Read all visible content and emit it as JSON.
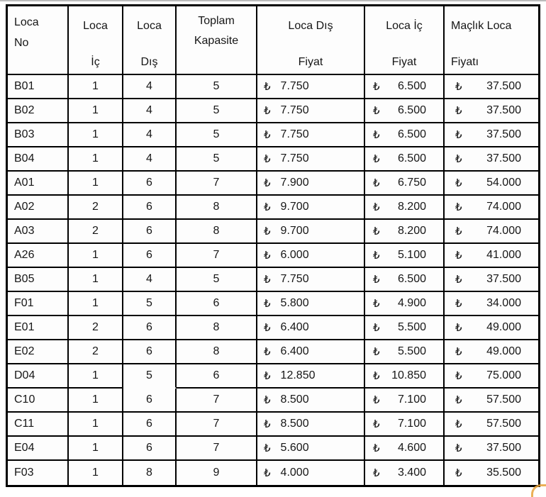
{
  "table": {
    "currency": "₺",
    "columns": [
      {
        "id": "loca-no",
        "lines": [
          "Loca",
          "No"
        ]
      },
      {
        "id": "loca-ic",
        "lines": [
          "Loca",
          "İç"
        ]
      },
      {
        "id": "loca-dis",
        "lines": [
          "Loca",
          "Dış"
        ]
      },
      {
        "id": "toplam-kapasite",
        "lines": [
          "Toplam",
          "Kapasite"
        ]
      },
      {
        "id": "loca-dis-fiyat",
        "lines": [
          "Loca Dış",
          "Fiyat"
        ]
      },
      {
        "id": "loca-ic-fiyat",
        "lines": [
          "Loca İç",
          "Fiyat"
        ]
      },
      {
        "id": "maclik-loca-fiyati",
        "lines": [
          "Maçlık Loca",
          "Fiyatı"
        ]
      }
    ],
    "rows": [
      {
        "no": "B01",
        "ic": "1",
        "dis": "4",
        "kapasite": "5",
        "dis_fiyat": "7.750",
        "ic_fiyat": "6.500",
        "maclik_fiyat": "37.500"
      },
      {
        "no": "B02",
        "ic": "1",
        "dis": "4",
        "kapasite": "5",
        "dis_fiyat": "7.750",
        "ic_fiyat": "6.500",
        "maclik_fiyat": "37.500"
      },
      {
        "no": "B03",
        "ic": "1",
        "dis": "4",
        "kapasite": "5",
        "dis_fiyat": "7.750",
        "ic_fiyat": "6.500",
        "maclik_fiyat": "37.500"
      },
      {
        "no": "B04",
        "ic": "1",
        "dis": "4",
        "kapasite": "5",
        "dis_fiyat": "7.750",
        "ic_fiyat": "6.500",
        "maclik_fiyat": "37.500"
      },
      {
        "no": "A01",
        "ic": "1",
        "dis": "6",
        "kapasite": "7",
        "dis_fiyat": "7.900",
        "ic_fiyat": "6.750",
        "maclik_fiyat": "54.000"
      },
      {
        "no": "A02",
        "ic": "2",
        "dis": "6",
        "kapasite": "8",
        "dis_fiyat": "9.700",
        "ic_fiyat": "8.200",
        "maclik_fiyat": "74.000"
      },
      {
        "no": "A03",
        "ic": "2",
        "dis": "6",
        "kapasite": "8",
        "dis_fiyat": "9.700",
        "ic_fiyat": "8.200",
        "maclik_fiyat": "74.000"
      },
      {
        "no": "A26",
        "ic": "1",
        "dis": "6",
        "kapasite": "7",
        "dis_fiyat": "6.000",
        "ic_fiyat": "5.100",
        "maclik_fiyat": "41.000"
      },
      {
        "no": "B05",
        "ic": "1",
        "dis": "4",
        "kapasite": "5",
        "dis_fiyat": "7.750",
        "ic_fiyat": "6.500",
        "maclik_fiyat": "37.500"
      },
      {
        "no": "F01",
        "ic": "1",
        "dis": "5",
        "kapasite": "6",
        "dis_fiyat": "5.800",
        "ic_fiyat": "4.900",
        "maclik_fiyat": "34.000"
      },
      {
        "no": "E01",
        "ic": "2",
        "dis": "6",
        "kapasite": "8",
        "dis_fiyat": "6.400",
        "ic_fiyat": "5.500",
        "maclik_fiyat": "49.000"
      },
      {
        "no": "E02",
        "ic": "2",
        "dis": "6",
        "kapasite": "8",
        "dis_fiyat": "6.400",
        "ic_fiyat": "5.500",
        "maclik_fiyat": "49.000"
      },
      {
        "no": "D04",
        "ic": "1",
        "dis": "5",
        "kapasite": "6",
        "dis_fiyat": "12.850",
        "ic_fiyat": "10.850",
        "maclik_fiyat": "75.000",
        "dis_no_divider": true
      },
      {
        "no": "C10",
        "ic": "1",
        "dis": "6",
        "kapasite": "7",
        "dis_fiyat": "8.500",
        "ic_fiyat": "7.100",
        "maclik_fiyat": "57.500"
      },
      {
        "no": "C11",
        "ic": "1",
        "dis": "6",
        "kapasite": "7",
        "dis_fiyat": "8.500",
        "ic_fiyat": "7.100",
        "maclik_fiyat": "57.500"
      },
      {
        "no": "E04",
        "ic": "1",
        "dis": "6",
        "kapasite": "7",
        "dis_fiyat": "5.600",
        "ic_fiyat": "4.600",
        "maclik_fiyat": "37.500"
      },
      {
        "no": "F03",
        "ic": "1",
        "dis": "8",
        "kapasite": "9",
        "dis_fiyat": "4.000",
        "ic_fiyat": "3.400",
        "maclik_fiyat": "35.500"
      }
    ]
  },
  "colors": {
    "border": "#000000",
    "text": "#161616",
    "background": "#ffffff",
    "artifact_orange": "#e8a33b",
    "top_edge_gray": "#a6a6a6"
  }
}
